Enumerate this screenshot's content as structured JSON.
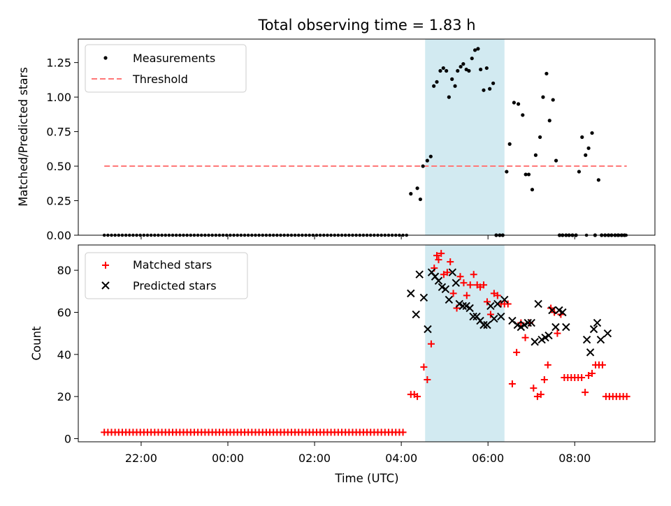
{
  "chart_data": [
    {
      "type": "scatter",
      "title": "Total observing time = 1.83 h",
      "xlabel": "",
      "ylabel": "Matched/Predicted stars",
      "ylim": [
        0,
        1.42
      ],
      "yticks": [
        "0.00",
        "0.25",
        "0.50",
        "0.75",
        "1.00",
        "1.25"
      ],
      "legend": [
        "Measurements",
        "Threshold"
      ],
      "legend_position": "top-left",
      "highlight_span": {
        "start": 4.55,
        "end": 6.38,
        "color": "#add8e6"
      },
      "threshold": 0.5,
      "threshold_x_range": [
        -2.85,
        9.2
      ],
      "zero_points": {
        "start": -2.85,
        "end": 9.2,
        "step": 0.083,
        "exclude": [
          [
            4.2,
            6.45
          ],
          [
            6.45,
            7.9
          ],
          [
            8.0,
            8.25
          ],
          [
            8.3,
            8.72
          ]
        ]
      },
      "series": [
        {
          "name": "Measurements",
          "color": "#000000",
          "x": [
            4.22,
            4.37,
            4.44,
            4.5,
            4.6,
            4.68,
            4.75,
            4.82,
            4.9,
            4.97,
            5.04,
            5.1,
            5.17,
            5.24,
            5.3,
            5.37,
            5.43,
            5.5,
            5.56,
            5.63,
            5.7,
            5.77,
            5.83,
            5.9,
            5.97,
            6.04,
            6.12,
            6.19,
            6.27,
            6.34,
            6.43,
            6.5,
            6.6,
            6.7,
            6.8,
            6.87,
            6.94,
            7.02,
            7.1,
            7.2,
            7.27,
            7.35,
            7.42,
            7.5,
            7.57,
            7.65,
            7.72,
            7.8,
            7.87,
            7.95,
            8.03,
            8.1,
            8.17,
            8.25,
            8.32,
            8.4,
            8.47,
            8.55,
            8.62,
            8.7,
            8.78,
            8.85,
            8.93,
            9.0,
            9.08,
            9.15
          ],
          "y": [
            0.3,
            0.34,
            0.26,
            0.5,
            0.54,
            0.57,
            1.08,
            1.11,
            1.19,
            1.21,
            1.19,
            1.0,
            1.13,
            1.08,
            1.19,
            1.22,
            1.24,
            1.2,
            1.19,
            1.28,
            1.34,
            1.35,
            1.2,
            1.05,
            1.21,
            1.06,
            1.1,
            0.0,
            0.0,
            0.0,
            0.46,
            0.66,
            0.96,
            0.95,
            0.87,
            0.44,
            0.44,
            0.33,
            0.58,
            0.71,
            1.0,
            1.17,
            0.83,
            0.98,
            0.54,
            0.0,
            0.0,
            0.0,
            0.0,
            0.0,
            0.0,
            0.46,
            0.71,
            0.58,
            0.63,
            0.74,
            0.0,
            0.4,
            0.0,
            0.0,
            0.0,
            0.0,
            0.0,
            0.0,
            0.0,
            0.0
          ]
        }
      ]
    },
    {
      "type": "scatter",
      "xlabel": "Time (UTC)",
      "ylabel": "Count",
      "xlim": [
        -3.45,
        9.85
      ],
      "ylim": [
        -1.5,
        92
      ],
      "xticks": [
        {
          "value": -2,
          "label": "22:00"
        },
        {
          "value": 0,
          "label": "00:00"
        },
        {
          "value": 2,
          "label": "02:00"
        },
        {
          "value": 4,
          "label": "04:00"
        },
        {
          "value": 6,
          "label": "06:00"
        },
        {
          "value": 8,
          "label": "08:00"
        }
      ],
      "yticks": [
        "0",
        "20",
        "40",
        "60",
        "80"
      ],
      "legend": [
        "Matched stars",
        "Predicted stars"
      ],
      "legend_position": "top-left",
      "highlight_span": {
        "start": 4.55,
        "end": 6.38,
        "color": "#add8e6"
      },
      "baseline_matched": {
        "start": -2.85,
        "end": 4.1,
        "step": 0.083,
        "value": 3
      },
      "series": [
        {
          "name": "Matched stars",
          "marker": "+",
          "color": "#ff0000",
          "x": [
            4.22,
            4.3,
            4.37,
            4.52,
            4.6,
            4.69,
            4.76,
            4.82,
            4.86,
            4.92,
            4.98,
            5.06,
            5.13,
            5.2,
            5.28,
            5.36,
            5.44,
            5.51,
            5.59,
            5.67,
            5.75,
            5.82,
            5.9,
            5.98,
            6.06,
            6.14,
            6.22,
            6.3,
            6.38,
            6.46,
            6.56,
            6.66,
            6.76,
            6.86,
            6.96,
            7.05,
            7.14,
            7.22,
            7.3,
            7.38,
            7.45,
            7.53,
            7.6,
            7.68,
            7.76,
            7.84,
            7.92,
            8.0,
            8.08,
            8.16,
            8.24,
            8.32,
            8.4,
            8.48,
            8.56,
            8.64,
            8.72,
            8.8,
            8.88,
            8.96,
            9.04,
            9.12,
            9.2
          ],
          "y": [
            21,
            21,
            20,
            34,
            28,
            45,
            81,
            87,
            85,
            88,
            78,
            79,
            84,
            69,
            62,
            77,
            74,
            68,
            73,
            78,
            73,
            72,
            73,
            65,
            59,
            69,
            68,
            64,
            64,
            64,
            26,
            41,
            55,
            48,
            55,
            24,
            20,
            21,
            28,
            35,
            62,
            60,
            50,
            59,
            29,
            29,
            29,
            29,
            29,
            29,
            22,
            30,
            31,
            35,
            35,
            35,
            20,
            20,
            20,
            20,
            20,
            20,
            20
          ]
        },
        {
          "name": "Predicted stars",
          "marker": "x",
          "color": "#000000",
          "x": [
            4.22,
            4.34,
            4.42,
            4.52,
            4.61,
            4.7,
            4.78,
            4.86,
            4.94,
            5.02,
            5.1,
            5.18,
            5.26,
            5.34,
            5.42,
            5.5,
            5.58,
            5.66,
            5.74,
            5.82,
            5.9,
            5.98,
            6.06,
            6.14,
            6.22,
            6.3,
            6.38,
            6.56,
            6.68,
            6.76,
            6.84,
            6.92,
            7.0,
            7.08,
            7.16,
            7.24,
            7.32,
            7.4,
            7.48,
            7.56,
            7.64,
            7.72,
            7.8,
            8.28,
            8.36,
            8.44,
            8.52,
            8.6,
            8.76
          ],
          "y": [
            69,
            59,
            78,
            67,
            52,
            79,
            77,
            75,
            72,
            71,
            66,
            79,
            74,
            64,
            63,
            63,
            62,
            58,
            58,
            56,
            54,
            54,
            63,
            57,
            64,
            58,
            66,
            56,
            54,
            53,
            54,
            55,
            55,
            46,
            64,
            47,
            48,
            49,
            61,
            53,
            61,
            60,
            53,
            47,
            41,
            52,
            55,
            47,
            50
          ]
        }
      ]
    }
  ]
}
